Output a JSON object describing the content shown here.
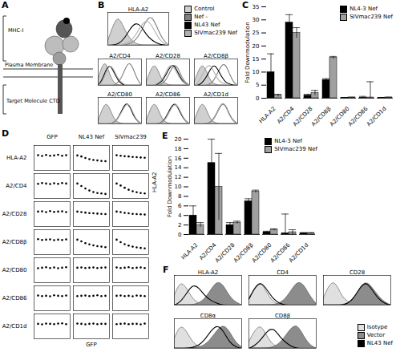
{
  "diagram": {
    "label": "A",
    "texts": {
      "top": "MHC-I",
      "middle": "Plasma Membrane",
      "bottom": "Target Molecule CTD"
    }
  },
  "chart_data": [
    {
      "label": "B",
      "type": "histogram",
      "legend": "top-right",
      "tick_labels": false,
      "x": [
        1,
        2,
        3,
        4,
        5,
        6,
        7,
        8,
        9,
        10,
        11,
        12
      ],
      "xlim": [
        1,
        12
      ],
      "ylim": [
        0,
        10
      ],
      "series": [
        {
          "name": "Control",
          "color": "#d0d0d0",
          "type": "area"
        },
        {
          "name": "Nef -",
          "color": "#808080",
          "type": "line"
        },
        {
          "name": "NL43 Nef",
          "color": "#000000",
          "type": "line"
        },
        {
          "name": "SIVmac239 Nef",
          "color": "#b0b0b0",
          "type": "line"
        }
      ],
      "panels": [
        {
          "title": "HLA-A2",
          "curves": [
            [
              1,
              6,
              9,
              5,
              2,
              0.5,
              0,
              0,
              0,
              0,
              0,
              0
            ],
            [
              0,
              0,
              0,
              0,
              0.5,
              1.5,
              4,
              8,
              9,
              5,
              1.5,
              0
            ],
            [
              0,
              0,
              0.5,
              2,
              5,
              7,
              6,
              3,
              1.5,
              0.5,
              0,
              0
            ],
            [
              0,
              0,
              0,
              0.5,
              1,
              3,
              6,
              8,
              6,
              2.5,
              0.5,
              0
            ]
          ]
        },
        {
          "title": "A2/CD4",
          "curves": [
            [
              2,
              7,
              9,
              4,
              1,
              0,
              0,
              0,
              0,
              0,
              0,
              0
            ],
            [
              0,
              0,
              0,
              0,
              0,
              1,
              3,
              7,
              9,
              6,
              2,
              0
            ],
            [
              0,
              2,
              6,
              8,
              5,
              2,
              0.5,
              0,
              0,
              0,
              0,
              0
            ],
            [
              0,
              1,
              5,
              8,
              6,
              2.5,
              1,
              0,
              0,
              0,
              0,
              0
            ]
          ]
        },
        {
          "title": "A2/CD28",
          "curves": [
            [
              1,
              5,
              8,
              6,
              2,
              0.5,
              0,
              0,
              0,
              0,
              0,
              0
            ],
            [
              0,
              0,
              0,
              0,
              0.5,
              2,
              5,
              8,
              7,
              3,
              1,
              0
            ],
            [
              0,
              0,
              0,
              0.5,
              1.5,
              4,
              7,
              8,
              5,
              2,
              0.5,
              0
            ],
            [
              0,
              0,
              0,
              1,
              2,
              5,
              8,
              7,
              4,
              1.5,
              0.5,
              0
            ]
          ]
        },
        {
          "title": "A2/CD8β",
          "curves": [
            [
              1,
              5,
              8,
              6,
              2,
              0.5,
              0,
              0,
              0,
              0,
              0,
              0
            ],
            [
              0,
              0,
              0,
              0,
              0.5,
              2,
              5,
              8,
              8,
              4,
              1,
              0
            ],
            [
              0,
              0,
              1,
              3,
              6,
              8,
              6,
              3,
              1,
              0.5,
              0,
              0
            ],
            [
              0,
              1,
              4,
              7,
              8,
              5,
              2,
              1,
              0.5,
              0,
              0,
              0
            ]
          ]
        },
        {
          "title": "A2/CD80",
          "curves": [
            [
              1,
              5,
              8,
              6,
              2,
              0.5,
              0,
              0,
              0,
              0,
              0,
              0
            ],
            [
              0,
              0,
              0,
              0,
              0.5,
              2,
              5,
              8,
              7,
              3,
              1,
              0
            ],
            [
              0,
              0,
              0,
              0,
              0.5,
              2,
              5,
              8,
              7,
              3,
              1,
              0
            ],
            [
              0,
              0,
              0,
              0,
              0.5,
              2,
              4.5,
              7.5,
              7.5,
              3.5,
              1,
              0
            ]
          ]
        },
        {
          "title": "A2/CD86",
          "curves": [
            [
              1,
              5,
              8,
              6,
              2,
              0.5,
              0,
              0,
              0,
              0,
              0,
              0
            ],
            [
              0,
              0,
              0,
              0,
              0.5,
              2,
              5,
              8,
              7,
              3,
              1,
              0
            ],
            [
              0,
              0,
              0,
              0,
              0.5,
              2.5,
              5.5,
              8,
              6.5,
              3,
              1,
              0
            ],
            [
              0,
              0,
              0,
              0,
              0.5,
              2,
              5,
              7.5,
              7,
              3.5,
              1,
              0
            ]
          ]
        },
        {
          "title": "A2/CD1d",
          "curves": [
            [
              1,
              5,
              8,
              6,
              2,
              0.5,
              0,
              0,
              0,
              0,
              0,
              0
            ],
            [
              0,
              0,
              0,
              0,
              0.5,
              2,
              5,
              8,
              7,
              3,
              1,
              0
            ],
            [
              0,
              0,
              0,
              0,
              0.5,
              2,
              5,
              8,
              7,
              3,
              1,
              0
            ],
            [
              0,
              0,
              0,
              0,
              0.5,
              2,
              5,
              8,
              7,
              3,
              1,
              0
            ]
          ]
        }
      ]
    },
    {
      "label": "C",
      "type": "bar",
      "legend": "top-right",
      "y_label": "Fold Downmodulation",
      "categories": [
        "HLA-A2",
        "A2/CD4",
        "A2/CD28",
        "A2/CD8β",
        "A2/CD80",
        "A2/CD86",
        "A2/CD1d"
      ],
      "ylim": [
        0,
        35
      ],
      "yticks": [
        0,
        5,
        10,
        15,
        20,
        25,
        30,
        35
      ],
      "series": [
        {
          "name": "NL4-3 Nef",
          "color": "#000000",
          "values": [
            10,
            29,
            1,
            7,
            0.2,
            0.2,
            0.2
          ],
          "errors": [
            7,
            3,
            0.5,
            0.5,
            0.1,
            0.5,
            0.1
          ]
        },
        {
          "name": "SIVmac239 Nef",
          "color": "#a0a0a0",
          "values": [
            1,
            25,
            2,
            15.5,
            0.3,
            0.3,
            0.3
          ],
          "errors": [
            0.5,
            2,
            1,
            0.5,
            0.1,
            6,
            0.1
          ]
        }
      ]
    },
    {
      "label": "D",
      "type": "scatter",
      "tick_labels": false,
      "x_label": "GFP",
      "y_label": "HLA-A2",
      "columns": [
        "GFP",
        "NL43 Nef",
        "SIVmac239"
      ],
      "rows": [
        "HLA-A2",
        "A2/CD4",
        "A2/CD28",
        "A2/CD8β",
        "A2/CD80",
        "A2/CD86",
        "A2/CD1d"
      ],
      "x": [
        1,
        2,
        3,
        4,
        5,
        6,
        7,
        8
      ],
      "xlim": [
        0,
        9
      ],
      "ylim": [
        0,
        10
      ],
      "cells": [
        [
          [
            6.1,
            5.8,
            6.2,
            5.9,
            6.0,
            6.3,
            5.9,
            6.1
          ],
          [
            6.0,
            5.6,
            5.0,
            4.5,
            4.2,
            4.0,
            3.8,
            3.7
          ],
          [
            6.1,
            5.9,
            5.7,
            5.6,
            5.4,
            5.3,
            5.2,
            5.1
          ]
        ],
        [
          [
            5.9,
            6.2,
            6.0,
            5.8,
            6.1,
            5.9,
            6.2,
            6.0
          ],
          [
            6.0,
            5.0,
            4.0,
            3.2,
            2.6,
            2.2,
            2.0,
            1.8
          ],
          [
            6.0,
            5.2,
            4.3,
            3.5,
            2.9,
            2.5,
            2.2,
            2.0
          ]
        ],
        [
          [
            6.0,
            6.1,
            5.8,
            6.2,
            5.9,
            6.0,
            6.1,
            5.8
          ],
          [
            6.0,
            5.8,
            5.6,
            5.4,
            5.3,
            5.2,
            5.1,
            5.0
          ],
          [
            6.0,
            5.8,
            5.5,
            5.3,
            5.1,
            5.0,
            4.9,
            4.8
          ]
        ],
        [
          [
            6.2,
            5.9,
            6.0,
            6.1,
            5.8,
            6.0,
            5.9,
            6.1
          ],
          [
            6.0,
            5.3,
            4.6,
            4.1,
            3.7,
            3.4,
            3.2,
            3.0
          ],
          [
            6.0,
            5.0,
            4.2,
            3.6,
            3.2,
            2.9,
            2.7,
            2.5
          ]
        ],
        [
          [
            5.8,
            6.0,
            6.2,
            5.9,
            6.1,
            5.8,
            6.0,
            6.2
          ],
          [
            6.0,
            6.1,
            5.9,
            6.0,
            6.1,
            5.9,
            6.0,
            6.1
          ],
          [
            6.1,
            5.9,
            6.0,
            6.2,
            5.9,
            6.0,
            6.1,
            5.9
          ]
        ],
        [
          [
            6.1,
            5.9,
            6.0,
            5.8,
            6.2,
            6.0,
            5.9,
            6.1
          ],
          [
            5.9,
            6.0,
            6.1,
            5.9,
            6.0,
            6.2,
            5.9,
            6.0
          ],
          [
            6.0,
            6.1,
            5.9,
            6.0,
            5.8,
            6.1,
            6.0,
            5.9
          ]
        ],
        [
          [
            6.0,
            5.8,
            6.1,
            6.0,
            5.9,
            6.1,
            6.2,
            5.9
          ],
          [
            6.1,
            6.0,
            5.8,
            6.0,
            6.1,
            5.9,
            6.0,
            6.0
          ],
          [
            5.9,
            6.0,
            6.1,
            5.9,
            6.0,
            6.0,
            5.8,
            6.1
          ]
        ]
      ]
    },
    {
      "label": "E",
      "type": "bar",
      "legend": "top-right",
      "y_label": "Fold Downmodulation",
      "categories": [
        "HLA-A2",
        "A2/CD4",
        "A2/CD28",
        "A2/CD8β",
        "A2/CD80",
        "A2/CD86",
        "A2/CD1d"
      ],
      "ylim": [
        0,
        20
      ],
      "yticks": [
        0,
        2,
        4,
        6,
        8,
        10,
        12,
        14,
        16,
        18,
        20
      ],
      "series": [
        {
          "name": "NL4-3 Nef",
          "color": "#000000",
          "values": [
            4,
            15,
            2,
            7,
            0.5,
            0.3,
            0.3
          ],
          "errors": [
            2,
            5,
            0.5,
            0.5,
            0.2,
            4,
            0.1
          ]
        },
        {
          "name": "SIVmac239 Nef",
          "color": "#a0a0a0",
          "values": [
            2,
            10,
            2.5,
            9,
            1,
            0.5,
            0.3
          ],
          "errors": [
            0.5,
            7,
            0.3,
            0.3,
            0.2,
            0.5,
            0.1
          ]
        }
      ]
    },
    {
      "label": "F",
      "type": "histogram",
      "legend": "bottom-right",
      "tick_labels": false,
      "x": [
        1,
        2,
        3,
        4,
        5,
        6,
        7,
        8,
        9,
        10,
        11,
        12
      ],
      "xlim": [
        1,
        12
      ],
      "ylim": [
        0,
        10
      ],
      "series": [
        {
          "name": "Isotype",
          "color": "#e0e0e0",
          "type": "area"
        },
        {
          "name": "Vector",
          "color": "#8c8c8c",
          "type": "area"
        },
        {
          "name": "NL43 Nef",
          "color": "#000000",
          "type": "line"
        }
      ],
      "panels": [
        {
          "title": "HLA-A2",
          "curves": [
            [
              3,
              8,
              6,
              2,
              0.5,
              0,
              0,
              0,
              0,
              0,
              0,
              0
            ],
            [
              0,
              0,
              0,
              0,
              0.5,
              2,
              5,
              8,
              7,
              3,
              1,
              0
            ],
            [
              0,
              1,
              4,
              7,
              6,
              3,
              1.5,
              0.5,
              0,
              0,
              0,
              0
            ]
          ]
        },
        {
          "title": "CD4",
          "curves": [
            [
              2,
              6,
              8,
              4,
              1,
              0,
              0,
              0,
              0,
              0,
              0,
              0
            ],
            [
              0,
              0,
              0,
              0,
              0,
              0.5,
              2,
              5,
              8,
              7,
              3,
              0.5
            ],
            [
              2,
              6,
              8,
              5,
              2,
              0.5,
              0,
              0,
              0,
              0,
              0,
              0
            ]
          ]
        },
        {
          "title": "CD28",
          "curves": [
            [
              2,
              7,
              8,
              3,
              1,
              0.3,
              0,
              0,
              0,
              0,
              0,
              0
            ],
            [
              0,
              0,
              0,
              0,
              0.5,
              2,
              6,
              8,
              6,
              3,
              1,
              0
            ],
            [
              0,
              0,
              0,
              0,
              0.5,
              2.5,
              6,
              8,
              5,
              2,
              0.5,
              0
            ]
          ]
        },
        {
          "title": "CD8α",
          "curves": [
            [
              3,
              8,
              6,
              2,
              0.5,
              0,
              0,
              0,
              0,
              0,
              0,
              0
            ],
            [
              0,
              0,
              0,
              0,
              0.3,
              1,
              3,
              6,
              8,
              6,
              2,
              0.5
            ],
            [
              0,
              0,
              0,
              0.3,
              1,
              3,
              6,
              8,
              6,
              2,
              0.5,
              0
            ]
          ]
        },
        {
          "title": "CD8β",
          "curves": [
            [
              2,
              6,
              8,
              4,
              1,
              0.3,
              0,
              0,
              0,
              0,
              0,
              0
            ],
            [
              0,
              0,
              0,
              0,
              0.3,
              1.5,
              4,
              7,
              8,
              4,
              1,
              0
            ],
            [
              0,
              1,
              3,
              6,
              7,
              4,
              2,
              0.5,
              0,
              0,
              0,
              0
            ]
          ]
        }
      ]
    }
  ]
}
